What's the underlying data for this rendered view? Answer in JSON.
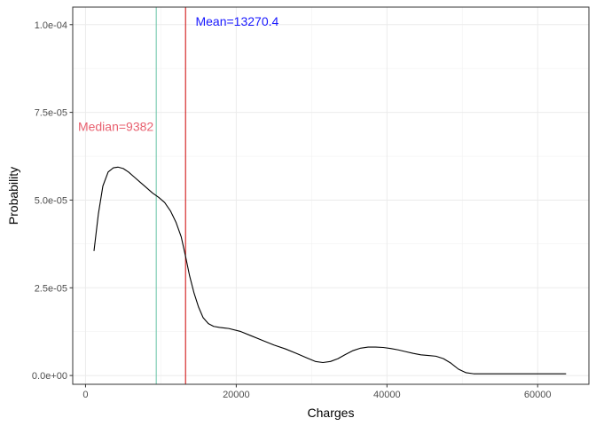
{
  "chart_data": {
    "type": "line",
    "title": "",
    "xlabel": "Charges",
    "ylabel": "Probability",
    "xlim": [
      -1700,
      66800
    ],
    "ylim": [
      -2.5e-06,
      0.000105
    ],
    "x_ticks": [
      0,
      20000,
      40000,
      60000
    ],
    "x_tick_labels": [
      "0",
      "20000",
      "40000",
      "60000"
    ],
    "y_ticks": [
      0,
      2.5e-05,
      5e-05,
      7.5e-05,
      0.0001
    ],
    "y_tick_labels": [
      "0.0e+00",
      "2.5e-05",
      "5.0e-05",
      "7.5e-05",
      "1.0e-04"
    ],
    "grid": true,
    "series": [
      {
        "color": "#000000",
        "x": [
          1122,
          1700,
          2300,
          3000,
          3700,
          4300,
          5000,
          5700,
          6500,
          7300,
          8100,
          8900,
          9700,
          10500,
          11300,
          12000,
          12700,
          13270,
          13800,
          14400,
          15000,
          15600,
          16300,
          17000,
          17800,
          19000,
          20500,
          22000,
          23500,
          25000,
          26500,
          28000,
          29500,
          30500,
          31500,
          32500,
          33500,
          34500,
          35500,
          36500,
          37500,
          38500,
          39500,
          40500,
          41500,
          42500,
          43500,
          44500,
          45500,
          46500,
          47500,
          48500,
          49500,
          50500,
          51500,
          52500,
          54000,
          56000,
          58000,
          60000,
          62000,
          63770
        ],
        "y": [
          3.55e-05,
          4.6e-05,
          5.4e-05,
          5.8e-05,
          5.92e-05,
          5.94e-05,
          5.9e-05,
          5.8e-05,
          5.65e-05,
          5.5e-05,
          5.35e-05,
          5.2e-05,
          5.08e-05,
          4.93e-05,
          4.68e-05,
          4.37e-05,
          3.95e-05,
          3.4e-05,
          2.85e-05,
          2.35e-05,
          1.95e-05,
          1.65e-05,
          1.48e-05,
          1.4e-05,
          1.37e-05,
          1.34e-05,
          1.26e-05,
          1.13e-05,
          1e-05,
          8.7e-06,
          7.6e-06,
          6.3e-06,
          4.9e-06,
          4e-06,
          3.7e-06,
          4e-06,
          4.8e-06,
          6e-06,
          7.1e-06,
          7.8e-06,
          8.1e-06,
          8.1e-06,
          8e-06,
          7.7e-06,
          7.3e-06,
          6.8e-06,
          6.3e-06,
          5.9e-06,
          5.7e-06,
          5.5e-06,
          4.8e-06,
          3.5e-06,
          1.8e-06,
          8e-07,
          5e-07,
          5e-07,
          5e-07,
          5e-07,
          5e-07,
          5e-07,
          5e-07,
          5e-07
        ]
      }
    ],
    "vlines": [
      {
        "x": 9382,
        "color": "#66c2a5"
      },
      {
        "x": 13270.4,
        "color": "#cc0000"
      }
    ],
    "annotations": [
      {
        "text": "Median=9382",
        "x": -1000,
        "y": 6.97e-05,
        "color": "#e8606f",
        "anchor": "start"
      },
      {
        "text": "Mean=13270.4",
        "x": 14600,
        "y": 9.97e-05,
        "color": "#1a1aff",
        "anchor": "start"
      }
    ]
  }
}
